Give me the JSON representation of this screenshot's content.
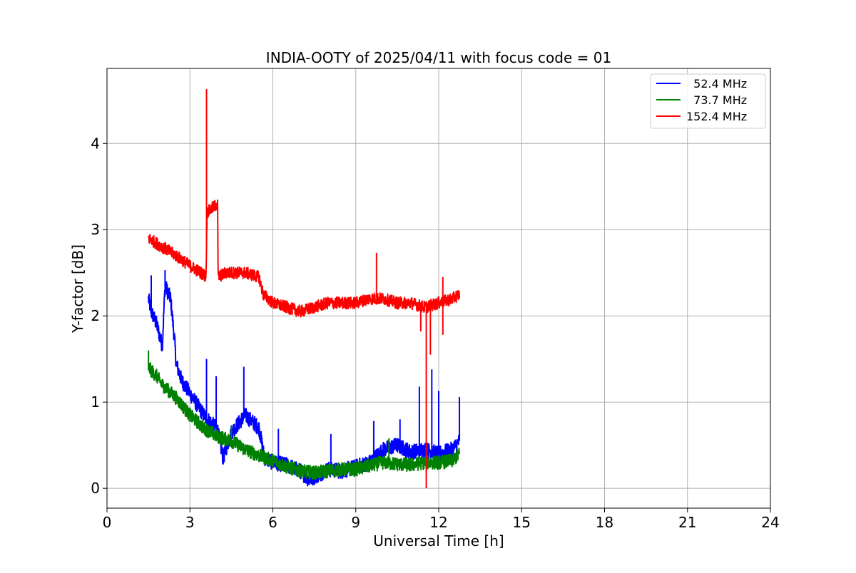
{
  "chart_data": {
    "type": "line",
    "title": "INDIA-OOTY of 2025/04/11 with focus code = 01",
    "xlabel": "Universal Time [h]",
    "ylabel": "Y-factor [dB]",
    "xlim": [
      0,
      24
    ],
    "ylim": [
      -0.23,
      4.87
    ],
    "xticks": [
      0,
      3,
      6,
      9,
      12,
      15,
      18,
      21,
      24
    ],
    "xtick_labels": [
      "0",
      "3",
      "6",
      "9",
      "12",
      "15",
      "18",
      "21",
      "24"
    ],
    "yticks": [
      0,
      1,
      2,
      3,
      4
    ],
    "ytick_labels": [
      "0",
      "1",
      "2",
      "3",
      "4"
    ],
    "grid": true,
    "legend_position": "top-right",
    "series": [
      {
        "name": "  52.4 MHz",
        "color": "#0000ff",
        "noise": 0.09,
        "points": [
          [
            1.5,
            2.2
          ],
          [
            1.6,
            2.05
          ],
          [
            1.8,
            1.9
          ],
          [
            2.0,
            1.65
          ],
          [
            2.1,
            2.35
          ],
          [
            2.3,
            2.2
          ],
          [
            2.45,
            1.7
          ],
          [
            2.5,
            1.45
          ],
          [
            2.7,
            1.25
          ],
          [
            3.0,
            1.1
          ],
          [
            3.5,
            0.85
          ],
          [
            4.0,
            0.68
          ],
          [
            4.2,
            0.35
          ],
          [
            4.5,
            0.65
          ],
          [
            5.0,
            0.85
          ],
          [
            5.5,
            0.7
          ],
          [
            5.7,
            0.35
          ],
          [
            6.0,
            0.3
          ],
          [
            6.5,
            0.27
          ],
          [
            7.0,
            0.2
          ],
          [
            7.3,
            0.1
          ],
          [
            7.6,
            0.15
          ],
          [
            8.0,
            0.22
          ],
          [
            8.5,
            0.2
          ],
          [
            9.0,
            0.25
          ],
          [
            9.5,
            0.3
          ],
          [
            10.0,
            0.45
          ],
          [
            10.5,
            0.5
          ],
          [
            11.0,
            0.42
          ],
          [
            11.5,
            0.45
          ],
          [
            12.0,
            0.4
          ],
          [
            12.5,
            0.45
          ],
          [
            12.75,
            0.55
          ]
        ],
        "spikes": [
          [
            1.6,
            2.47
          ],
          [
            2.1,
            2.53
          ],
          [
            3.6,
            1.5
          ],
          [
            3.95,
            1.3
          ],
          [
            4.95,
            1.41
          ],
          [
            6.2,
            0.69
          ],
          [
            8.1,
            0.63
          ],
          [
            9.65,
            0.78
          ],
          [
            10.6,
            0.8
          ],
          [
            11.3,
            1.18
          ],
          [
            11.75,
            1.38
          ],
          [
            12.0,
            1.13
          ],
          [
            12.75,
            1.06
          ]
        ]
      },
      {
        "name": "  73.7 MHz",
        "color": "#008000",
        "noise": 0.08,
        "points": [
          [
            1.5,
            1.4
          ],
          [
            1.8,
            1.3
          ],
          [
            2.0,
            1.2
          ],
          [
            2.5,
            1.05
          ],
          [
            3.0,
            0.85
          ],
          [
            3.5,
            0.7
          ],
          [
            4.0,
            0.6
          ],
          [
            4.5,
            0.55
          ],
          [
            5.0,
            0.45
          ],
          [
            5.5,
            0.38
          ],
          [
            6.0,
            0.32
          ],
          [
            6.5,
            0.25
          ],
          [
            7.0,
            0.2
          ],
          [
            7.5,
            0.18
          ],
          [
            8.0,
            0.2
          ],
          [
            8.5,
            0.22
          ],
          [
            9.0,
            0.22
          ],
          [
            9.5,
            0.26
          ],
          [
            10.0,
            0.3
          ],
          [
            10.5,
            0.28
          ],
          [
            11.0,
            0.27
          ],
          [
            11.5,
            0.3
          ],
          [
            12.0,
            0.3
          ],
          [
            12.5,
            0.32
          ],
          [
            12.75,
            0.4
          ]
        ],
        "spikes": [
          [
            1.5,
            1.6
          ],
          [
            4.5,
            0.72
          ],
          [
            10.2,
            0.58
          ]
        ]
      },
      {
        "name": "152.4 MHz",
        "color": "#ff0000",
        "noise": 0.07,
        "points": [
          [
            1.5,
            2.9
          ],
          [
            2.0,
            2.8
          ],
          [
            2.5,
            2.7
          ],
          [
            3.0,
            2.58
          ],
          [
            3.5,
            2.48
          ],
          [
            3.58,
            2.45
          ],
          [
            3.62,
            3.2
          ],
          [
            4.0,
            3.3
          ],
          [
            4.02,
            2.45
          ],
          [
            4.3,
            2.5
          ],
          [
            5.0,
            2.5
          ],
          [
            5.5,
            2.45
          ],
          [
            5.65,
            2.25
          ],
          [
            6.0,
            2.15
          ],
          [
            6.5,
            2.1
          ],
          [
            7.0,
            2.05
          ],
          [
            7.5,
            2.1
          ],
          [
            8.0,
            2.15
          ],
          [
            9.0,
            2.15
          ],
          [
            9.5,
            2.2
          ],
          [
            10.0,
            2.2
          ],
          [
            10.5,
            2.15
          ],
          [
            11.0,
            2.15
          ],
          [
            11.5,
            2.1
          ],
          [
            12.0,
            2.15
          ],
          [
            12.5,
            2.2
          ],
          [
            12.75,
            2.25
          ]
        ],
        "spikes": [
          [
            3.6,
            4.63
          ],
          [
            9.75,
            2.73
          ],
          [
            11.55,
            0.0
          ],
          [
            11.7,
            1.55
          ],
          [
            11.35,
            1.82
          ],
          [
            12.15,
            1.78
          ],
          [
            12.15,
            2.45
          ]
        ]
      }
    ]
  }
}
